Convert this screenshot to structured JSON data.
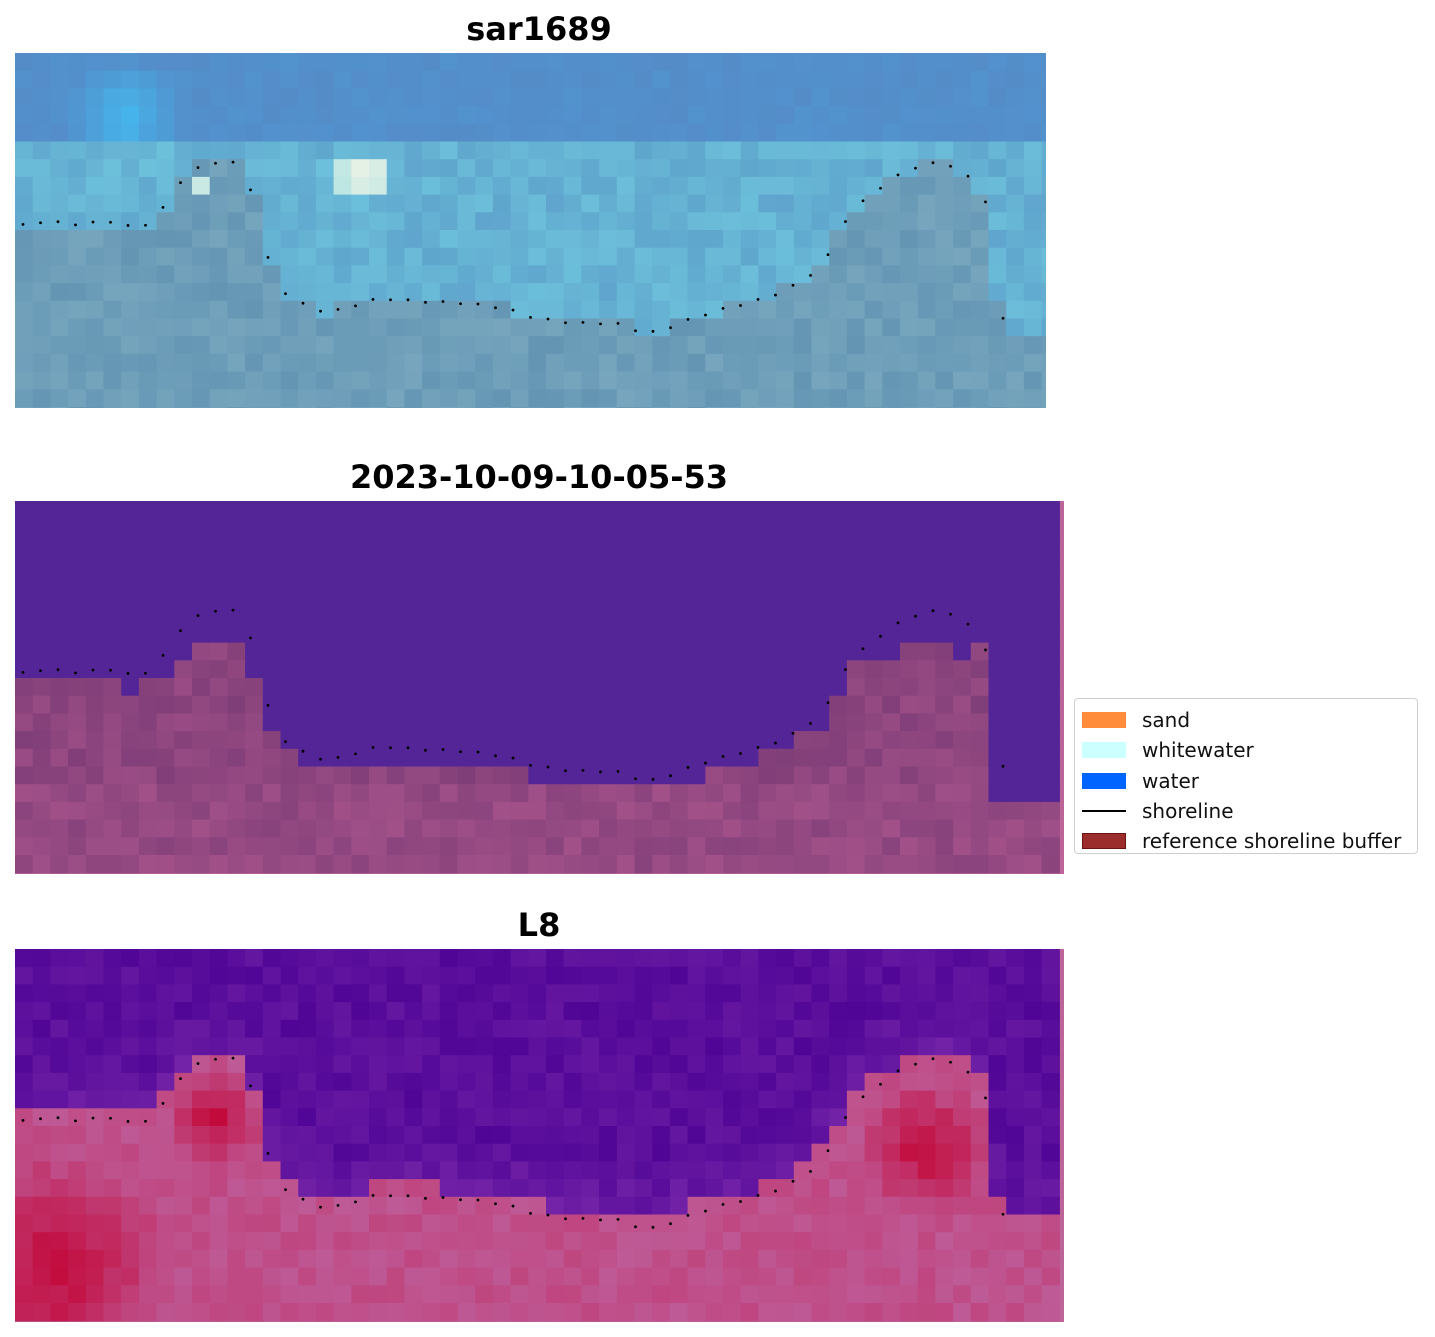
{
  "panels": [
    {
      "title": "sar1689",
      "kind": "rgb",
      "extra_border": false
    },
    {
      "title": "2023-10-09-10-05-53",
      "kind": "class",
      "extra_border": true
    },
    {
      "title": "L8",
      "kind": "index",
      "extra_border": true
    }
  ],
  "legend": {
    "items": [
      {
        "label": "sand",
        "color": "#ff8c3a",
        "type": "patch"
      },
      {
        "label": "whitewater",
        "color": "#ccffff",
        "type": "patch"
      },
      {
        "label": "water",
        "color": "#0064ff",
        "type": "patch"
      },
      {
        "label": "shoreline",
        "color": "#000000",
        "type": "line"
      },
      {
        "label": "reference shoreline buffer",
        "color": "#9b2d2d",
        "type": "patch"
      }
    ]
  },
  "colors": {
    "water_class": "#532596",
    "land_class": "#8a4a84",
    "border_pink": "#bd6598",
    "index_water": "#5b0a9c",
    "index_land": "#c63b68"
  }
}
